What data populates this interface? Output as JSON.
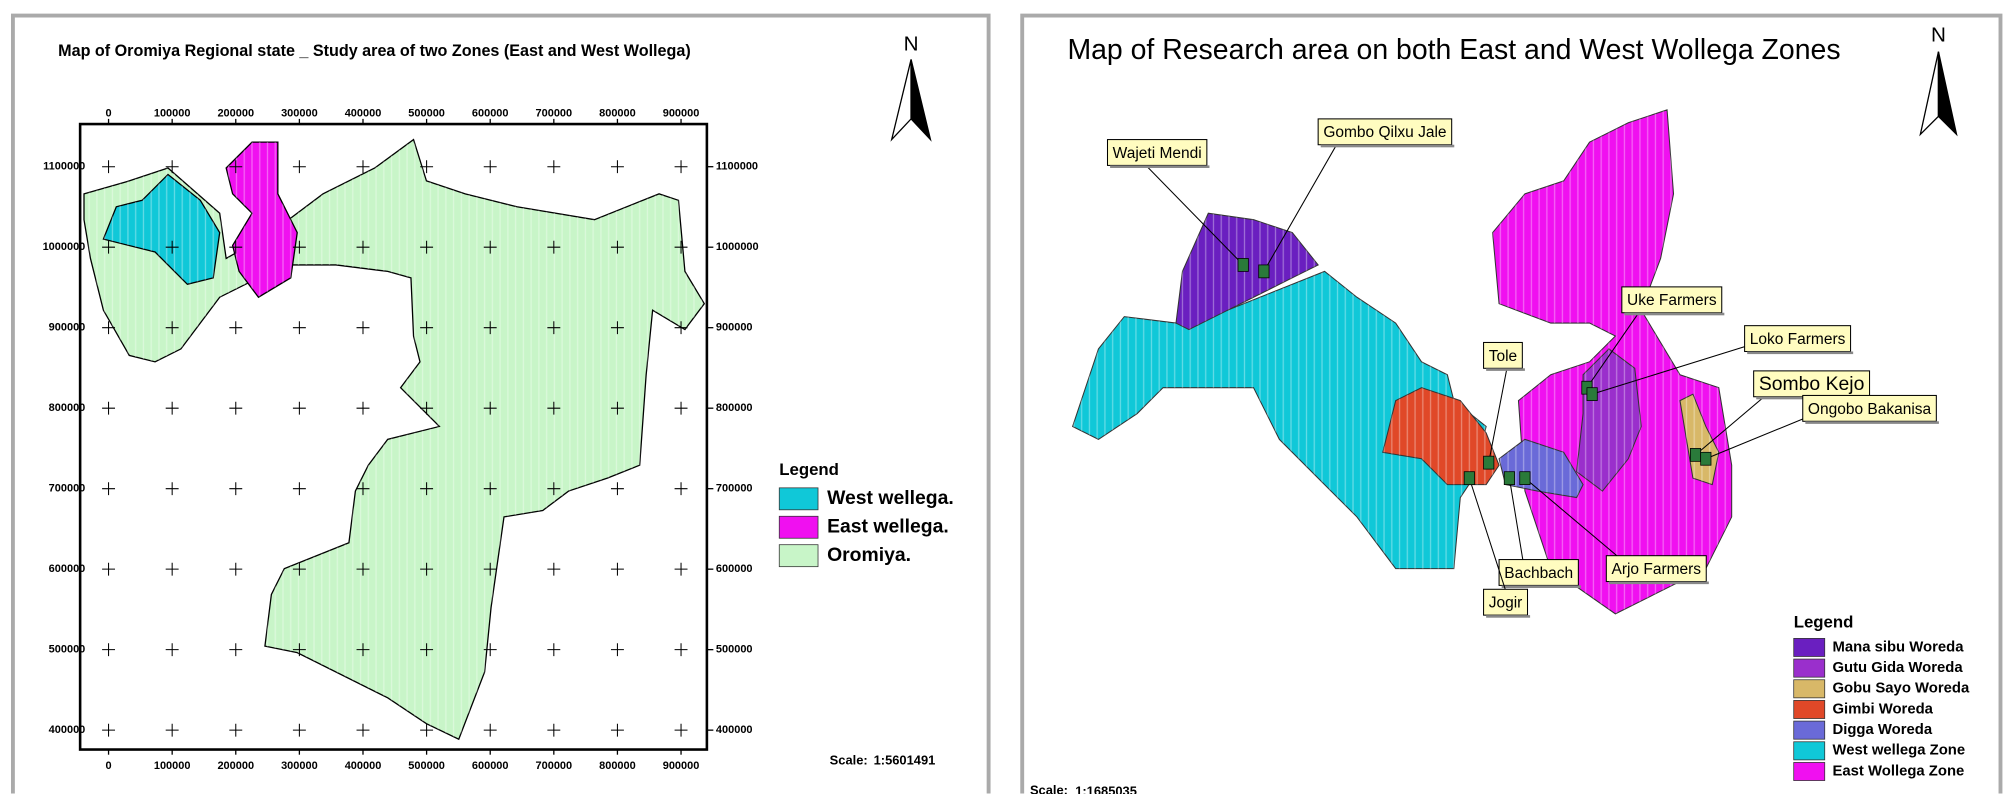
{
  "left_map": {
    "title": "Map of Oromiya Regional state _ Study area of two Zones (East and West Wollega)",
    "xticks": [
      0,
      100000,
      200000,
      300000,
      400000,
      500000,
      600000,
      700000,
      800000,
      900000
    ],
    "yticks": [
      400000,
      500000,
      600000,
      700000,
      800000,
      900000,
      1000000,
      1100000
    ],
    "north": "N",
    "legend": {
      "title": "Legend",
      "items": [
        {
          "label": "West wellega.",
          "color": "#10c8d8"
        },
        {
          "label": "East wellega.",
          "color": "#f010f0"
        },
        {
          "label": "Oromiya.",
          "color": "#c8f5c8"
        }
      ]
    },
    "scale": {
      "label": "Scale:",
      "value": "1:5601491"
    }
  },
  "right_map": {
    "title": "Map of Research area  on both East and West Wollega Zones",
    "north": "N",
    "places": [
      "Wajeti Mendi",
      "Gombo Qilxu Jale",
      "Uke Farmers",
      "Tole",
      "Loko Farmers",
      "Sombo Kejo",
      "Ongobo Bakanisa",
      "Arjo Farmers",
      "Bachbach",
      "Jogir"
    ],
    "legend": {
      "title": "Legend",
      "items": [
        {
          "label": "Mana sibu Woreda",
          "color": "#6a1fc0"
        },
        {
          "label": "Gutu Gida Woreda",
          "color": "#9a2fcc"
        },
        {
          "label": "Gobu Sayo Woreda",
          "color": "#d8b868"
        },
        {
          "label": "Gimbi Woreda",
          "color": "#e04828"
        },
        {
          "label": "Digga Woreda",
          "color": "#6a6ad8"
        },
        {
          "label": "West wellega Zone",
          "color": "#10c8d8"
        },
        {
          "label": "East Wollega Zone",
          "color": "#f010f0"
        }
      ]
    },
    "scale": {
      "label": "Scale:",
      "value": "1:1685035"
    }
  }
}
